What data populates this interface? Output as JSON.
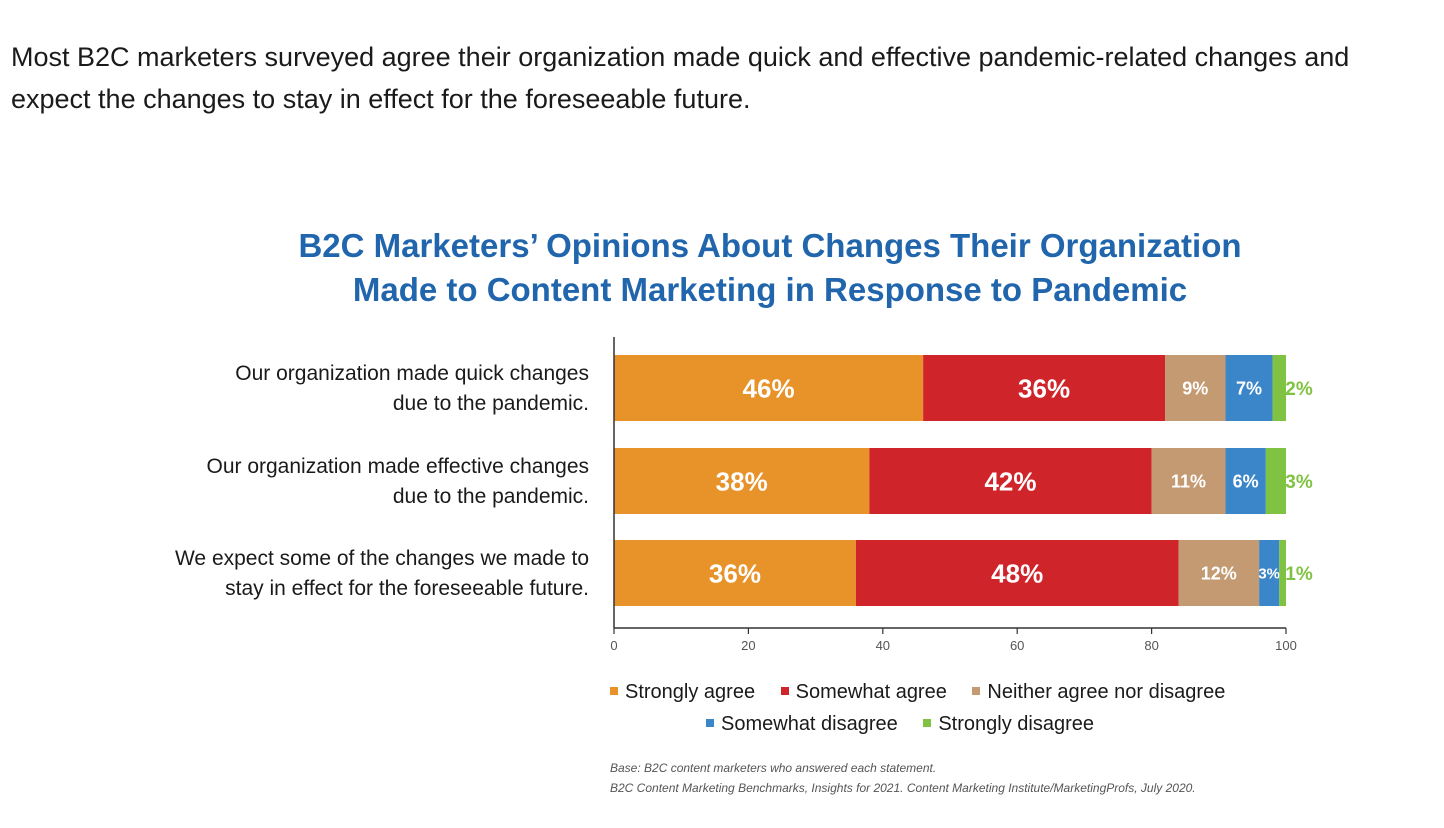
{
  "intro_text": "Most B2C marketers surveyed agree their organization made quick and effective pandemic-related changes and expect the changes to stay in effect for the foreseeable future.",
  "chart_data": {
    "type": "bar",
    "orientation": "horizontal",
    "stacked": true,
    "title": [
      "B2C Marketers’ Opinions About Changes Their Organization",
      "Made to Content Marketing in Response to Pandemic"
    ],
    "categories": [
      [
        "Our organization made quick changes",
        "due to the pandemic."
      ],
      [
        "Our organization made effective changes",
        "due to the pandemic."
      ],
      [
        "We expect some of the changes we made to",
        "stay in effect for the foreseeable future."
      ]
    ],
    "series": [
      {
        "name": "Strongly agree",
        "color": "#e8922a",
        "values": [
          46,
          38,
          36
        ],
        "labels": [
          "46%",
          "38%",
          "36%"
        ]
      },
      {
        "name": "Somewhat agree",
        "color": "#d0242b",
        "values": [
          36,
          42,
          48
        ],
        "labels": [
          "36%",
          "42%",
          "48%"
        ]
      },
      {
        "name": "Neither agree nor disagree",
        "color": "#c49a72",
        "values": [
          9,
          11,
          12
        ],
        "labels": [
          "9%",
          "11%",
          "12%"
        ]
      },
      {
        "name": "Somewhat disagree",
        "color": "#3b86c8",
        "values": [
          7,
          6,
          3
        ],
        "labels": [
          "7%",
          "6%",
          "3%"
        ]
      },
      {
        "name": "Strongly disagree",
        "color": "#80c242",
        "values": [
          2,
          3,
          1
        ],
        "labels": [
          "2%",
          "3%",
          "1%"
        ]
      }
    ],
    "xlim": [
      0,
      100
    ],
    "xticks": [
      "0",
      "20",
      "40",
      "60",
      "80",
      "100"
    ],
    "grid": false,
    "legend_position": "bottom"
  },
  "source": {
    "base": "Base: B2C content marketers who answered each statement.",
    "citation": "B2C Content Marketing Benchmarks, Insights for 2021. Content Marketing Institute/MarketingProfs, July 2020."
  }
}
